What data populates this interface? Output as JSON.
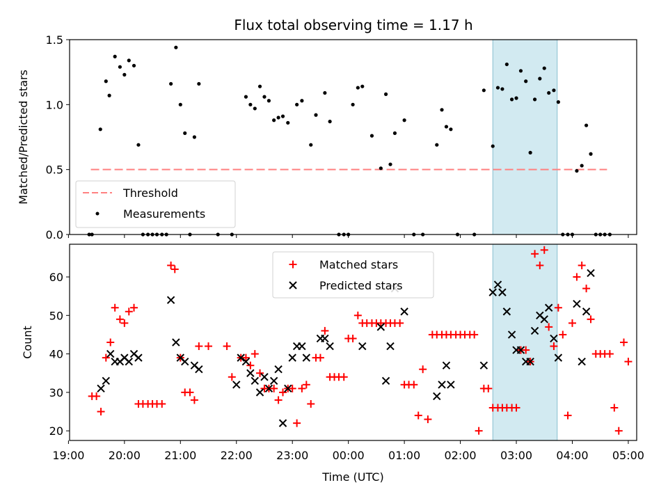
{
  "chart_data": [
    {
      "type": "scatter",
      "title": "Flux total observing time = 1.17 h",
      "xlabel": "",
      "ylabel": "Matched/Predicted stars",
      "ylim": [
        0,
        1.5
      ],
      "yticks": [
        "0.0",
        "0.5",
        "1.0",
        "1.5"
      ],
      "highlight_band": {
        "x_from": 2.58,
        "x_to": 3.73,
        "color": "#add8e6"
      },
      "threshold": {
        "name": "Threshold",
        "y": 0.5,
        "x_from": -4.6,
        "x_to": 4.62,
        "color": "#ff8080"
      },
      "legend": {
        "position": "lower-left",
        "entries": [
          "Threshold",
          "Measurements"
        ]
      },
      "series": [
        {
          "name": "Measurements",
          "color": "#000000",
          "points": [
            [
              -4.63,
              0.0
            ],
            [
              -4.58,
              0.0
            ],
            [
              -4.43,
              0.81
            ],
            [
              -4.33,
              1.18
            ],
            [
              -4.27,
              1.07
            ],
            [
              -4.17,
              1.37
            ],
            [
              -4.08,
              1.29
            ],
            [
              -4.0,
              1.23
            ],
            [
              -3.92,
              1.34
            ],
            [
              -3.83,
              1.3
            ],
            [
              -3.75,
              0.69
            ],
            [
              -3.67,
              0.0
            ],
            [
              -3.58,
              0.0
            ],
            [
              -3.5,
              0.0
            ],
            [
              -3.42,
              0.0
            ],
            [
              -3.33,
              0.0
            ],
            [
              -3.25,
              0.0
            ],
            [
              -3.17,
              1.16
            ],
            [
              -3.08,
              1.44
            ],
            [
              -3.0,
              1.0
            ],
            [
              -2.92,
              0.78
            ],
            [
              -2.83,
              0.0
            ],
            [
              -2.75,
              0.75
            ],
            [
              -2.67,
              1.16
            ],
            [
              -2.33,
              0.0
            ],
            [
              -2.08,
              0.0
            ],
            [
              -1.83,
              1.06
            ],
            [
              -1.75,
              1.0
            ],
            [
              -1.67,
              0.97
            ],
            [
              -1.58,
              1.14
            ],
            [
              -1.5,
              1.06
            ],
            [
              -1.42,
              1.03
            ],
            [
              -1.33,
              0.88
            ],
            [
              -1.25,
              0.9
            ],
            [
              -1.17,
              0.91
            ],
            [
              -1.08,
              0.86
            ],
            [
              -0.92,
              1.0
            ],
            [
              -0.83,
              1.03
            ],
            [
              -0.67,
              0.69
            ],
            [
              -0.58,
              0.92
            ],
            [
              -0.42,
              1.09
            ],
            [
              -0.33,
              0.87
            ],
            [
              -0.17,
              0.0
            ],
            [
              -0.08,
              0.0
            ],
            [
              0.0,
              0.0
            ],
            [
              0.08,
              1.0
            ],
            [
              0.17,
              1.13
            ],
            [
              0.25,
              1.14
            ],
            [
              0.42,
              0.76
            ],
            [
              0.58,
              0.51
            ],
            [
              0.67,
              1.08
            ],
            [
              0.75,
              0.54
            ],
            [
              0.83,
              0.78
            ],
            [
              1.0,
              0.88
            ],
            [
              1.17,
              0.0
            ],
            [
              1.33,
              0.0
            ],
            [
              1.58,
              0.69
            ],
            [
              1.67,
              0.96
            ],
            [
              1.75,
              0.83
            ],
            [
              1.83,
              0.81
            ],
            [
              1.95,
              0.0
            ],
            [
              2.25,
              0.0
            ],
            [
              2.42,
              1.11
            ],
            [
              2.58,
              0.68
            ],
            [
              2.67,
              1.13
            ],
            [
              2.75,
              1.12
            ],
            [
              2.83,
              1.31
            ],
            [
              2.92,
              1.04
            ],
            [
              3.0,
              1.05
            ],
            [
              3.08,
              1.26
            ],
            [
              3.17,
              1.18
            ],
            [
              3.25,
              0.63
            ],
            [
              3.33,
              1.04
            ],
            [
              3.42,
              1.2
            ],
            [
              3.5,
              1.28
            ],
            [
              3.58,
              1.09
            ],
            [
              3.67,
              1.11
            ],
            [
              3.75,
              1.02
            ],
            [
              3.83,
              0.0
            ],
            [
              3.92,
              0.0
            ],
            [
              4.0,
              0.0
            ],
            [
              4.08,
              0.49
            ],
            [
              4.17,
              0.53
            ],
            [
              4.25,
              0.84
            ],
            [
              4.33,
              0.62
            ],
            [
              4.42,
              0.0
            ],
            [
              4.5,
              0.0
            ],
            [
              4.58,
              0.0
            ],
            [
              4.67,
              0.0
            ]
          ]
        }
      ]
    },
    {
      "type": "scatter",
      "title": "",
      "xlabel": "Time (UTC)",
      "ylabel": "Count",
      "xlim": [
        -4.98,
        5.15
      ],
      "ylim": [
        17.5,
        68.5
      ],
      "yticks": [
        20,
        30,
        40,
        50,
        60
      ],
      "xticks": [
        "19:00",
        "20:00",
        "21:00",
        "22:00",
        "23:00",
        "00:00",
        "01:00",
        "02:00",
        "03:00",
        "04:00",
        "05:00"
      ],
      "highlight_band": {
        "x_from": 2.58,
        "x_to": 3.73,
        "color": "#add8e6"
      },
      "legend": {
        "position": "upper-center",
        "entries": [
          "Matched stars",
          "Predicted stars"
        ]
      },
      "series": [
        {
          "name": "Matched stars",
          "color": "#ff0000",
          "points": [
            [
              -4.58,
              29
            ],
            [
              -4.5,
              29
            ],
            [
              -4.42,
              25
            ],
            [
              -4.33,
              39
            ],
            [
              -4.25,
              43
            ],
            [
              -4.17,
              52
            ],
            [
              -4.08,
              49
            ],
            [
              -4.0,
              48
            ],
            [
              -3.92,
              51
            ],
            [
              -3.83,
              52
            ],
            [
              -3.75,
              27
            ],
            [
              -3.67,
              27
            ],
            [
              -3.58,
              27
            ],
            [
              -3.5,
              27
            ],
            [
              -3.42,
              27
            ],
            [
              -3.33,
              27
            ],
            [
              -3.17,
              63
            ],
            [
              -3.1,
              62
            ],
            [
              -3.0,
              39
            ],
            [
              -2.92,
              30
            ],
            [
              -2.83,
              30
            ],
            [
              -2.75,
              28
            ],
            [
              -2.67,
              42
            ],
            [
              -2.5,
              42
            ],
            [
              -2.17,
              42
            ],
            [
              -2.08,
              34
            ],
            [
              -1.92,
              39
            ],
            [
              -1.83,
              39
            ],
            [
              -1.75,
              37
            ],
            [
              -1.67,
              40
            ],
            [
              -1.58,
              35
            ],
            [
              -1.5,
              31
            ],
            [
              -1.42,
              31
            ],
            [
              -1.33,
              31
            ],
            [
              -1.25,
              28
            ],
            [
              -1.17,
              30
            ],
            [
              -1.08,
              31
            ],
            [
              -1.0,
              31
            ],
            [
              -0.92,
              22
            ],
            [
              -0.83,
              31
            ],
            [
              -0.75,
              32
            ],
            [
              -0.67,
              27
            ],
            [
              -0.58,
              39
            ],
            [
              -0.5,
              39
            ],
            [
              -0.42,
              46
            ],
            [
              -0.33,
              34
            ],
            [
              -0.25,
              34
            ],
            [
              -0.17,
              34
            ],
            [
              -0.08,
              34
            ],
            [
              0.0,
              44
            ],
            [
              0.08,
              44
            ],
            [
              0.17,
              50
            ],
            [
              0.25,
              48
            ],
            [
              0.33,
              48
            ],
            [
              0.42,
              48
            ],
            [
              0.5,
              48
            ],
            [
              0.58,
              48
            ],
            [
              0.67,
              48
            ],
            [
              0.75,
              48
            ],
            [
              0.83,
              48
            ],
            [
              0.92,
              48
            ],
            [
              1.0,
              32
            ],
            [
              1.08,
              32
            ],
            [
              1.17,
              32
            ],
            [
              1.25,
              24
            ],
            [
              1.33,
              36
            ],
            [
              1.42,
              23
            ],
            [
              1.5,
              45
            ],
            [
              1.58,
              45
            ],
            [
              1.67,
              45
            ],
            [
              1.75,
              45
            ],
            [
              1.83,
              45
            ],
            [
              1.92,
              45
            ],
            [
              2.0,
              45
            ],
            [
              2.08,
              45
            ],
            [
              2.17,
              45
            ],
            [
              2.25,
              45
            ],
            [
              2.33,
              20
            ],
            [
              2.42,
              31
            ],
            [
              2.5,
              31
            ],
            [
              2.58,
              26
            ],
            [
              2.67,
              26
            ],
            [
              2.75,
              26
            ],
            [
              2.83,
              26
            ],
            [
              2.92,
              26
            ],
            [
              3.0,
              26
            ],
            [
              3.08,
              41
            ],
            [
              3.17,
              41
            ],
            [
              3.25,
              38
            ],
            [
              3.33,
              66
            ],
            [
              3.42,
              63
            ],
            [
              3.5,
              67
            ],
            [
              3.58,
              47
            ],
            [
              3.67,
              42
            ],
            [
              3.75,
              52
            ],
            [
              3.83,
              45
            ],
            [
              3.92,
              24
            ],
            [
              4.0,
              48
            ],
            [
              4.08,
              60
            ],
            [
              4.17,
              63
            ],
            [
              4.25,
              57
            ],
            [
              4.33,
              49
            ],
            [
              4.42,
              40
            ],
            [
              4.5,
              40
            ],
            [
              4.58,
              40
            ],
            [
              4.67,
              40
            ],
            [
              4.75,
              26
            ],
            [
              4.83,
              20
            ],
            [
              4.92,
              43
            ],
            [
              5.0,
              38
            ]
          ]
        },
        {
          "name": "Predicted stars",
          "color": "#000000",
          "points": [
            [
              -4.42,
              31
            ],
            [
              -4.33,
              33
            ],
            [
              -4.25,
              40
            ],
            [
              -4.17,
              38
            ],
            [
              -4.08,
              38
            ],
            [
              -4.0,
              39
            ],
            [
              -3.92,
              38
            ],
            [
              -3.83,
              40
            ],
            [
              -3.75,
              39
            ],
            [
              -3.17,
              54
            ],
            [
              -3.08,
              43
            ],
            [
              -3.0,
              39
            ],
            [
              -2.92,
              38
            ],
            [
              -2.75,
              37
            ],
            [
              -2.67,
              36
            ],
            [
              -2.0,
              32
            ],
            [
              -1.92,
              39
            ],
            [
              -1.83,
              38
            ],
            [
              -1.75,
              35
            ],
            [
              -1.67,
              33
            ],
            [
              -1.58,
              30
            ],
            [
              -1.5,
              34
            ],
            [
              -1.42,
              31
            ],
            [
              -1.33,
              33
            ],
            [
              -1.25,
              36
            ],
            [
              -1.17,
              22
            ],
            [
              -1.08,
              31
            ],
            [
              -1.0,
              39
            ],
            [
              -0.92,
              42
            ],
            [
              -0.83,
              42
            ],
            [
              -0.75,
              39
            ],
            [
              -0.5,
              44
            ],
            [
              -0.42,
              44
            ],
            [
              -0.33,
              42
            ],
            [
              0.25,
              42
            ],
            [
              0.58,
              47
            ],
            [
              0.67,
              33
            ],
            [
              0.75,
              42
            ],
            [
              0.83,
              57
            ],
            [
              1.0,
              51
            ],
            [
              1.58,
              29
            ],
            [
              1.67,
              32
            ],
            [
              1.75,
              37
            ],
            [
              1.83,
              32
            ],
            [
              2.42,
              37
            ],
            [
              2.58,
              56
            ],
            [
              2.67,
              58
            ],
            [
              2.75,
              56
            ],
            [
              2.83,
              51
            ],
            [
              2.92,
              45
            ],
            [
              3.0,
              41
            ],
            [
              3.08,
              41
            ],
            [
              3.17,
              38
            ],
            [
              3.25,
              38
            ],
            [
              3.33,
              46
            ],
            [
              3.42,
              50
            ],
            [
              3.5,
              49
            ],
            [
              3.58,
              52
            ],
            [
              3.67,
              44
            ],
            [
              3.75,
              39
            ],
            [
              4.08,
              53
            ],
            [
              4.17,
              38
            ],
            [
              4.25,
              51
            ],
            [
              4.33,
              61
            ]
          ]
        }
      ]
    }
  ]
}
